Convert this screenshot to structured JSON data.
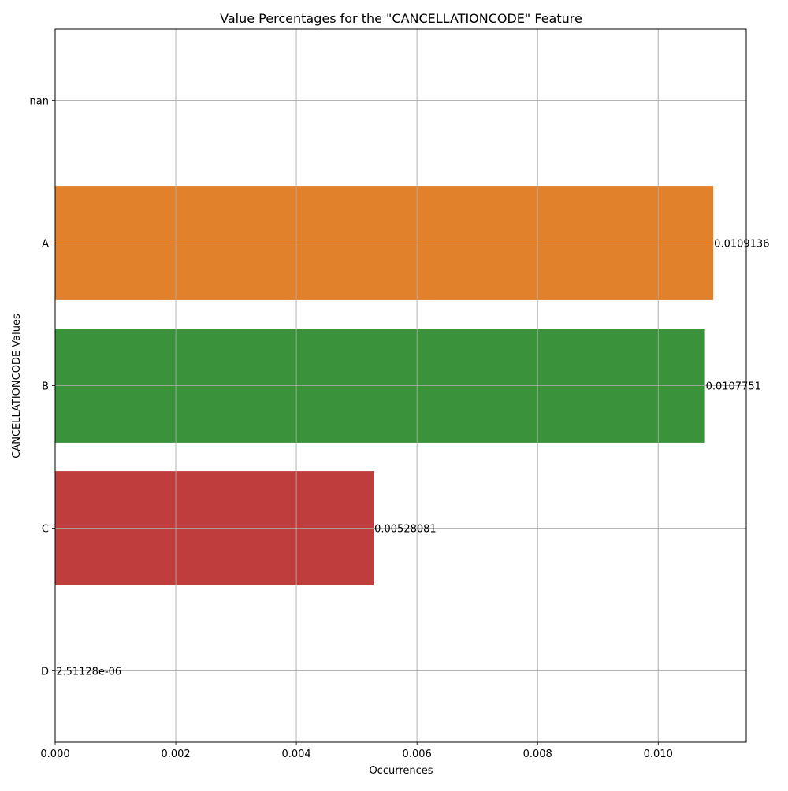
{
  "chart_data": {
    "type": "bar",
    "orientation": "horizontal",
    "title": "Value Percentages for the \"CANCELLATIONCODE\" Feature",
    "xlabel": "Occurrences",
    "ylabel": "CANCELLATIONCODE Values",
    "categories": [
      "nan",
      "A",
      "B",
      "C",
      "D"
    ],
    "values": [
      0,
      0.0109136,
      0.0107751,
      0.00528081,
      2.51128e-06
    ],
    "data_labels": [
      "",
      "0.0109136",
      "0.0107751",
      "0.00528081",
      "2.51128e-06"
    ],
    "colors": [
      "#1f77b4",
      "#e1812c",
      "#3a923a",
      "#c03d3e",
      "#9372b2"
    ],
    "xlim": [
      0,
      0.01146
    ],
    "xticks": [
      0,
      0.002,
      0.004,
      0.006,
      0.008,
      0.01
    ],
    "xtick_labels": [
      "0.000",
      "0.002",
      "0.004",
      "0.006",
      "0.008",
      "0.010"
    ],
    "grid": true,
    "legend": "none"
  }
}
